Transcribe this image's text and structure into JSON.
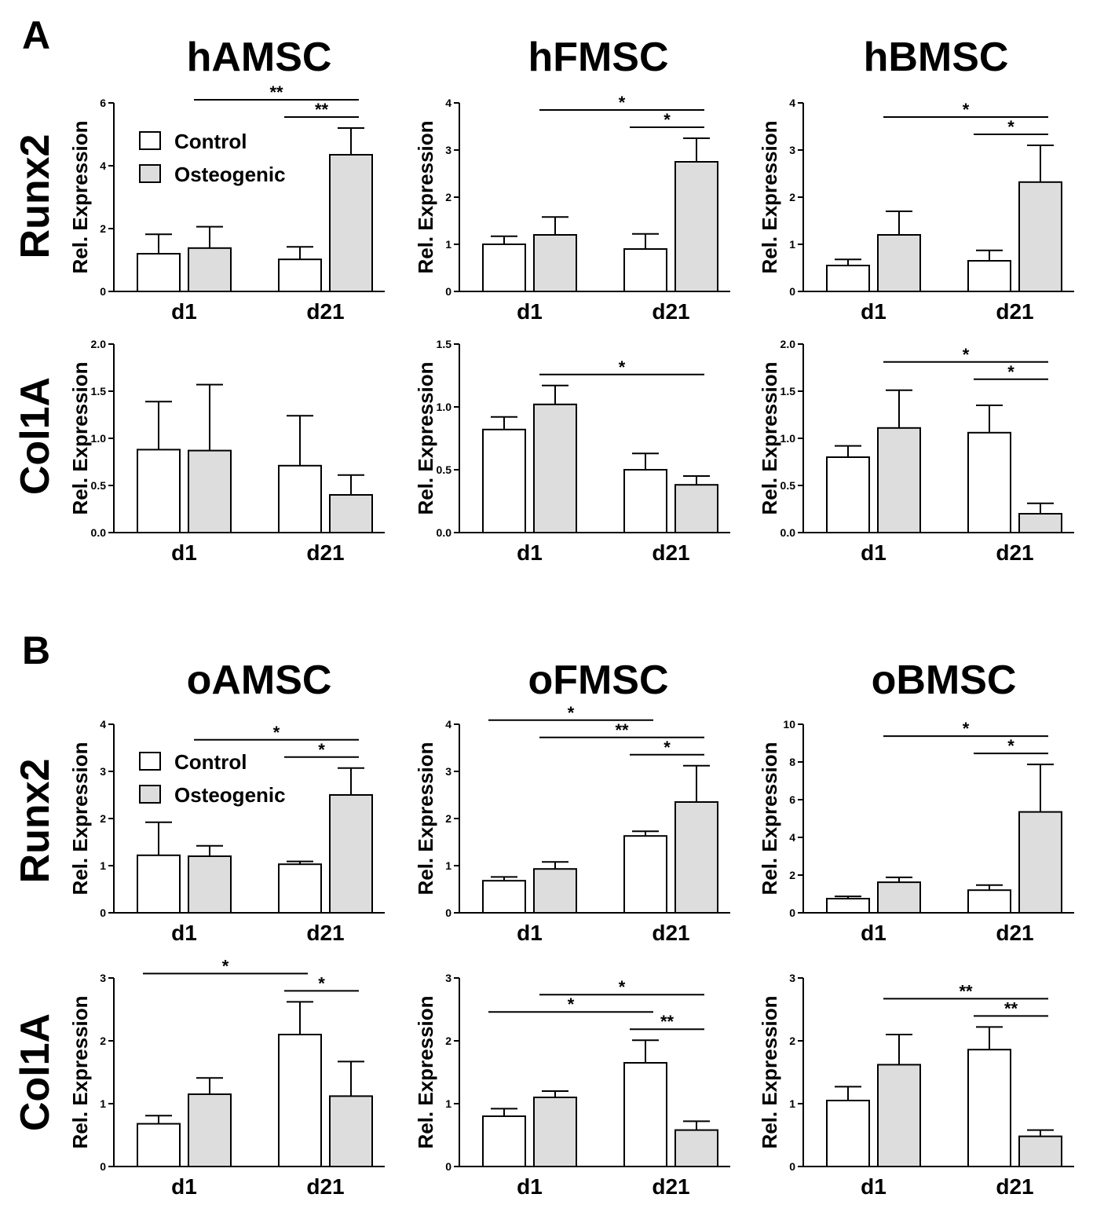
{
  "panels": [
    {
      "letter": "A",
      "titles": [
        "hAMSC",
        "hFMSC",
        "hBMSC"
      ]
    },
    {
      "letter": "B",
      "titles": [
        "oAMSC",
        "oFMSC",
        "oBMSC"
      ]
    }
  ],
  "row_labels": [
    "Runx2",
    "Col1A",
    "Runx2",
    "Col1A"
  ],
  "legend": {
    "control": "Control",
    "osteogenic": "Osteogenic"
  },
  "colors": {
    "control": "#ffffff",
    "osteogenic": "#dddddd",
    "stroke": "#000000"
  },
  "chart_data": [
    {
      "type": "bar",
      "title": "hAMSC",
      "row": "Runx2",
      "ylabel": "Rel. Expression",
      "categories": [
        "d1",
        "d21"
      ],
      "ylim": [
        0,
        6
      ],
      "yticks": [
        0,
        2,
        4,
        6
      ],
      "series": [
        {
          "name": "Control",
          "values": [
            1.2,
            1.02
          ],
          "errors": [
            0.62,
            0.4
          ]
        },
        {
          "name": "Osteogenic",
          "values": [
            1.38,
            4.35
          ],
          "errors": [
            0.68,
            0.85
          ]
        }
      ],
      "significance": [
        {
          "from": "d1-Osteogenic",
          "to": "d21-Osteogenic",
          "label": "**"
        },
        {
          "from": "d21-Control",
          "to": "d21-Osteogenic",
          "label": "**"
        }
      ]
    },
    {
      "type": "bar",
      "title": "hFMSC",
      "row": "Runx2",
      "ylabel": "Rel. Expression",
      "categories": [
        "d1",
        "d21"
      ],
      "ylim": [
        0,
        4
      ],
      "yticks": [
        0,
        1,
        2,
        3,
        4
      ],
      "series": [
        {
          "name": "Control",
          "values": [
            1.0,
            0.9
          ],
          "errors": [
            0.17,
            0.32
          ]
        },
        {
          "name": "Osteogenic",
          "values": [
            1.2,
            2.75
          ],
          "errors": [
            0.38,
            0.5
          ]
        }
      ],
      "significance": [
        {
          "from": "d1-Osteogenic",
          "to": "d21-Osteogenic",
          "label": "*"
        },
        {
          "from": "d21-Control",
          "to": "d21-Osteogenic",
          "label": "*"
        }
      ]
    },
    {
      "type": "bar",
      "title": "hBMSC",
      "row": "Runx2",
      "ylabel": "Rel. Expression",
      "categories": [
        "d1",
        "d21"
      ],
      "ylim": [
        0,
        4
      ],
      "yticks": [
        0,
        1,
        2,
        3,
        4
      ],
      "series": [
        {
          "name": "Control",
          "values": [
            0.55,
            0.65
          ],
          "errors": [
            0.13,
            0.22
          ]
        },
        {
          "name": "Osteogenic",
          "values": [
            1.2,
            2.32
          ],
          "errors": [
            0.5,
            0.78
          ]
        }
      ],
      "significance": [
        {
          "from": "d1-Osteogenic",
          "to": "d21-Osteogenic",
          "label": "*"
        },
        {
          "from": "d21-Control",
          "to": "d21-Osteogenic",
          "label": "*"
        }
      ]
    },
    {
      "type": "bar",
      "title": "hAMSC",
      "row": "Col1A",
      "ylabel": "Rel. Expression",
      "categories": [
        "d1",
        "d21"
      ],
      "ylim": [
        0,
        2.0
      ],
      "yticks": [
        0.0,
        0.5,
        1.0,
        1.5,
        2.0
      ],
      "series": [
        {
          "name": "Control",
          "values": [
            0.88,
            0.71
          ],
          "errors": [
            0.51,
            0.53
          ]
        },
        {
          "name": "Osteogenic",
          "values": [
            0.87,
            0.4
          ],
          "errors": [
            0.7,
            0.21
          ]
        }
      ],
      "significance": []
    },
    {
      "type": "bar",
      "title": "hFMSC",
      "row": "Col1A",
      "ylabel": "Rel. Expression",
      "categories": [
        "d1",
        "d21"
      ],
      "ylim": [
        0,
        1.5
      ],
      "yticks": [
        0.0,
        0.5,
        1.0,
        1.5
      ],
      "series": [
        {
          "name": "Control",
          "values": [
            0.82,
            0.5
          ],
          "errors": [
            0.1,
            0.13
          ]
        },
        {
          "name": "Osteogenic",
          "values": [
            1.02,
            0.38
          ],
          "errors": [
            0.15,
            0.07
          ]
        }
      ],
      "significance": [
        {
          "from": "d1-Osteogenic",
          "to": "d21-Osteogenic",
          "label": "*"
        }
      ]
    },
    {
      "type": "bar",
      "title": "hBMSC",
      "row": "Col1A",
      "ylabel": "Rel. Expression",
      "categories": [
        "d1",
        "d21"
      ],
      "ylim": [
        0,
        2.0
      ],
      "yticks": [
        0.0,
        0.5,
        1.0,
        1.5,
        2.0
      ],
      "series": [
        {
          "name": "Control",
          "values": [
            0.8,
            1.06
          ],
          "errors": [
            0.12,
            0.29
          ]
        },
        {
          "name": "Osteogenic",
          "values": [
            1.11,
            0.2
          ],
          "errors": [
            0.4,
            0.11
          ]
        }
      ],
      "significance": [
        {
          "from": "d1-Osteogenic",
          "to": "d21-Osteogenic",
          "label": "*"
        },
        {
          "from": "d21-Control",
          "to": "d21-Osteogenic",
          "label": "*"
        }
      ]
    },
    {
      "type": "bar",
      "title": "oAMSC",
      "row": "Runx2",
      "ylabel": "Rel. Expression",
      "categories": [
        "d1",
        "d21"
      ],
      "ylim": [
        0,
        4
      ],
      "yticks": [
        0,
        1,
        2,
        3,
        4
      ],
      "series": [
        {
          "name": "Control",
          "values": [
            1.22,
            1.03
          ],
          "errors": [
            0.7,
            0.06
          ]
        },
        {
          "name": "Osteogenic",
          "values": [
            1.2,
            2.5
          ],
          "errors": [
            0.22,
            0.57
          ]
        }
      ],
      "significance": [
        {
          "from": "d1-Osteogenic",
          "to": "d21-Osteogenic",
          "label": "*"
        },
        {
          "from": "d21-Control",
          "to": "d21-Osteogenic",
          "label": "*"
        }
      ]
    },
    {
      "type": "bar",
      "title": "oFMSC",
      "row": "Runx2",
      "ylabel": "Rel. Expression",
      "categories": [
        "d1",
        "d21"
      ],
      "ylim": [
        0,
        4
      ],
      "yticks": [
        0,
        1,
        2,
        3,
        4
      ],
      "series": [
        {
          "name": "Control",
          "values": [
            0.68,
            1.63
          ],
          "errors": [
            0.08,
            0.1
          ]
        },
        {
          "name": "Osteogenic",
          "values": [
            0.93,
            2.35
          ],
          "errors": [
            0.15,
            0.77
          ]
        }
      ],
      "significance": [
        {
          "from": "d1-Osteogenic",
          "to": "d21-Osteogenic",
          "label": "**"
        },
        {
          "from": "d21-Control",
          "to": "d21-Osteogenic",
          "label": "*"
        },
        {
          "from": "d1-Control",
          "to": "d21-Control",
          "label": "*"
        }
      ]
    },
    {
      "type": "bar",
      "title": "oBMSC",
      "row": "Runx2",
      "ylabel": "Rel. Expression",
      "categories": [
        "d1",
        "d21"
      ],
      "ylim": [
        0,
        10
      ],
      "yticks": [
        0,
        2,
        4,
        6,
        8,
        10
      ],
      "series": [
        {
          "name": "Control",
          "values": [
            0.75,
            1.2
          ],
          "errors": [
            0.12,
            0.27
          ]
        },
        {
          "name": "Osteogenic",
          "values": [
            1.62,
            5.35
          ],
          "errors": [
            0.26,
            2.52
          ]
        }
      ],
      "significance": [
        {
          "from": "d1-Osteogenic",
          "to": "d21-Osteogenic",
          "label": "*"
        },
        {
          "from": "d21-Control",
          "to": "d21-Osteogenic",
          "label": "*"
        }
      ]
    },
    {
      "type": "bar",
      "title": "oAMSC",
      "row": "Col1A",
      "ylabel": "Rel. Expression",
      "categories": [
        "d1",
        "d21"
      ],
      "ylim": [
        0,
        3
      ],
      "yticks": [
        0,
        1,
        2,
        3
      ],
      "series": [
        {
          "name": "Control",
          "values": [
            0.68,
            2.1
          ],
          "errors": [
            0.13,
            0.52
          ]
        },
        {
          "name": "Osteogenic",
          "values": [
            1.15,
            1.12
          ],
          "errors": [
            0.26,
            0.55
          ]
        }
      ],
      "significance": [
        {
          "from": "d1-Control",
          "to": "d21-Control",
          "label": "*"
        },
        {
          "from": "d21-Control",
          "to": "d21-Osteogenic",
          "label": "*"
        }
      ]
    },
    {
      "type": "bar",
      "title": "oFMSC",
      "row": "Col1A",
      "ylabel": "Rel. Expression",
      "categories": [
        "d1",
        "d21"
      ],
      "ylim": [
        0,
        3
      ],
      "yticks": [
        0,
        1,
        2,
        3
      ],
      "series": [
        {
          "name": "Control",
          "values": [
            0.8,
            1.65
          ],
          "errors": [
            0.12,
            0.36
          ]
        },
        {
          "name": "Osteogenic",
          "values": [
            1.1,
            0.58
          ],
          "errors": [
            0.1,
            0.14
          ]
        }
      ],
      "significance": [
        {
          "from": "d1-Control",
          "to": "d21-Control",
          "label": "*"
        },
        {
          "from": "d1-Osteogenic",
          "to": "d21-Osteogenic",
          "label": "*"
        },
        {
          "from": "d21-Control",
          "to": "d21-Osteogenic",
          "label": "**"
        }
      ]
    },
    {
      "type": "bar",
      "title": "oBMSC",
      "row": "Col1A",
      "ylabel": "Rel. Expression",
      "categories": [
        "d1",
        "d21"
      ],
      "ylim": [
        0,
        3
      ],
      "yticks": [
        0,
        1,
        2,
        3
      ],
      "series": [
        {
          "name": "Control",
          "values": [
            1.05,
            1.86
          ],
          "errors": [
            0.22,
            0.36
          ]
        },
        {
          "name": "Osteogenic",
          "values": [
            1.62,
            0.48
          ],
          "errors": [
            0.48,
            0.1
          ]
        }
      ],
      "significance": [
        {
          "from": "d1-Osteogenic",
          "to": "d21-Osteogenic",
          "label": "**"
        },
        {
          "from": "d21-Control",
          "to": "d21-Osteogenic",
          "label": "**"
        }
      ]
    }
  ]
}
